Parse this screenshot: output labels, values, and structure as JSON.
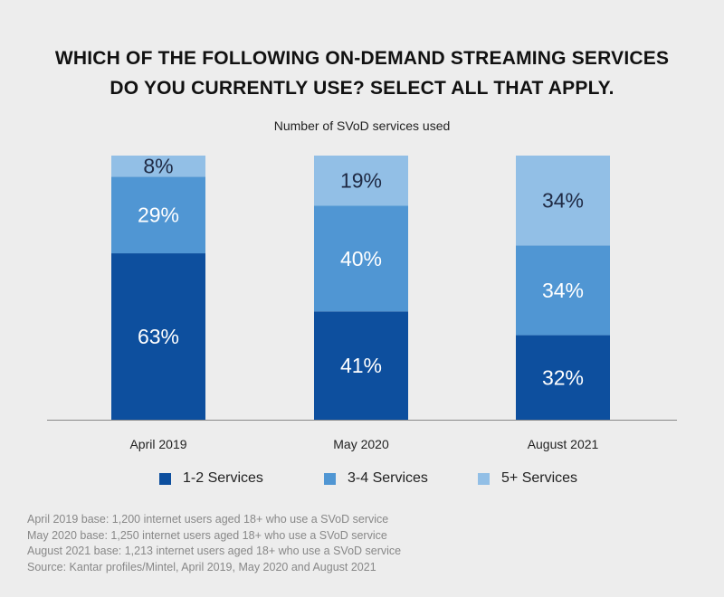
{
  "title_line1": "WHICH OF THE FOLLOWING ON-DEMAND STREAMING SERVICES",
  "title_line2": "DO YOU CURRENTLY USE? SELECT ALL THAT APPLY.",
  "subtitle": "Number of SVoD services used",
  "colors": {
    "series1": "#0d4f9e",
    "series2": "#5096d3",
    "series3": "#92bfe6",
    "label": "#ffffff",
    "label_light_bar": "#1f2a44",
    "axis": "#888888"
  },
  "chart_data": {
    "type": "bar",
    "stacked": true,
    "categories": [
      "April 2019",
      "May 2020",
      "August 2021"
    ],
    "series": [
      {
        "name": "1-2 Services",
        "values": [
          63,
          41,
          32
        ]
      },
      {
        "name": "3-4 Services",
        "values": [
          29,
          40,
          34
        ]
      },
      {
        "name": "5+ Services",
        "values": [
          8,
          19,
          34
        ]
      }
    ],
    "value_labels": [
      [
        "63%",
        "41%",
        "32%"
      ],
      [
        "29%",
        "40%",
        "34%"
      ],
      [
        "8%",
        "19%",
        "34%"
      ]
    ],
    "ylim": [
      0,
      100
    ],
    "grid": false,
    "legend_position": "bottom"
  },
  "notes": [
    "April 2019 base: 1,200 internet users aged 18+ who use a SVoD service",
    "May 2020 base: 1,250 internet users aged 18+ who use a SVoD service",
    "August 2021 base: 1,213 internet users aged 18+ who use a SVoD service",
    "Source: Kantar profiles/Mintel, April 2019, May 2020 and August 2021"
  ]
}
